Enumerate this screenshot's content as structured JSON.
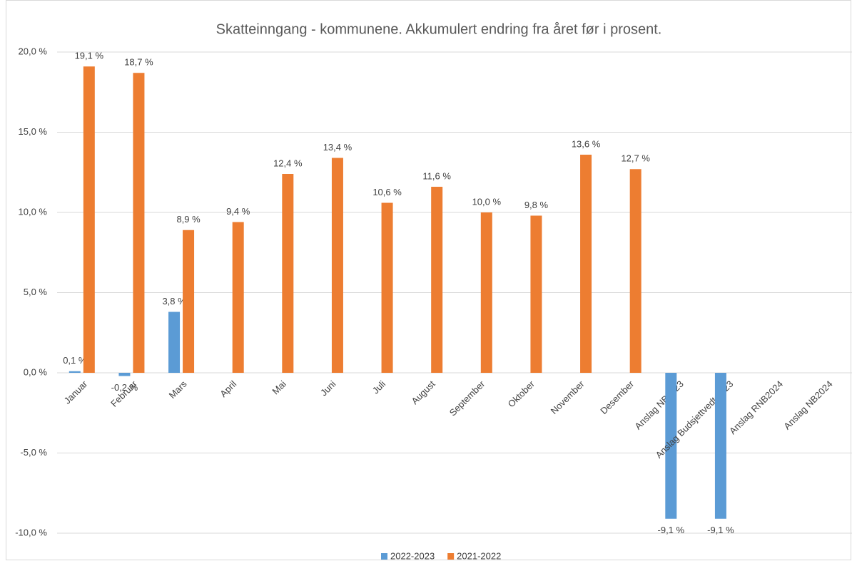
{
  "chart_data": {
    "type": "bar",
    "title": "Skatteinngang - kommunene. Akkumulert endring fra året før i prosent.",
    "categories": [
      "Januar",
      "Februar",
      "Mars",
      "April",
      "Mai",
      "Juni",
      "Juli",
      "August",
      "September",
      "Oktober",
      "November",
      "Desember",
      "Anslag NB2023",
      "Anslag Budsjettvedtak-23",
      "Anslag RNB2024",
      "Anslag NB2024"
    ],
    "series": [
      {
        "name": "2022-2023",
        "color": "#5b9bd5",
        "values": [
          0.1,
          -0.2,
          3.8,
          null,
          null,
          null,
          null,
          null,
          null,
          null,
          null,
          null,
          -9.1,
          -9.1,
          null,
          null
        ],
        "value_labels": [
          "0,1 %",
          "-0,2 %",
          "3,8 %",
          null,
          null,
          null,
          null,
          null,
          null,
          null,
          null,
          null,
          "-9,1 %",
          "-9,1 %",
          null,
          null
        ]
      },
      {
        "name": "2021-2022",
        "color": "#ed7d31",
        "values": [
          19.1,
          18.7,
          8.9,
          9.4,
          12.4,
          13.4,
          10.6,
          11.6,
          10.0,
          9.8,
          13.6,
          12.7,
          null,
          null,
          null,
          null
        ],
        "value_labels": [
          "19,1 %",
          "18,7 %",
          "8,9 %",
          "9,4 %",
          "12,4 %",
          "13,4 %",
          "10,6 %",
          "11,6 %",
          "10,0 %",
          "9,8 %",
          "13,6 %",
          "12,7 %",
          null,
          null,
          null,
          null
        ]
      }
    ],
    "ylim": [
      -10,
      20
    ],
    "yticks": [
      {
        "value": -10,
        "label": "-10,0 %"
      },
      {
        "value": -5,
        "label": "-5,0 %"
      },
      {
        "value": 0,
        "label": "0,0 %"
      },
      {
        "value": 5,
        "label": "5,0 %"
      },
      {
        "value": 10,
        "label": "10,0 %"
      },
      {
        "value": 15,
        "label": "15,0 %"
      },
      {
        "value": 20,
        "label": "20,0 %"
      }
    ],
    "grid": true,
    "legend": "bottom"
  }
}
